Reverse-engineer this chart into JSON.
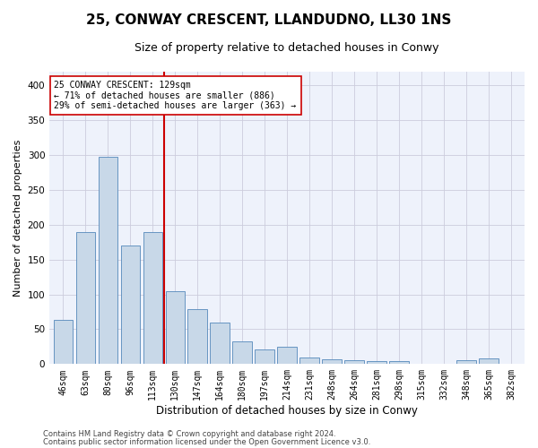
{
  "title_line1": "25, CONWAY CRESCENT, LLANDUDNO, LL30 1NS",
  "title_line2": "Size of property relative to detached houses in Conwy",
  "xlabel": "Distribution of detached houses by size in Conwy",
  "ylabel": "Number of detached properties",
  "categories": [
    "46sqm",
    "63sqm",
    "80sqm",
    "96sqm",
    "113sqm",
    "130sqm",
    "147sqm",
    "164sqm",
    "180sqm",
    "197sqm",
    "214sqm",
    "231sqm",
    "248sqm",
    "264sqm",
    "281sqm",
    "298sqm",
    "315sqm",
    "332sqm",
    "348sqm",
    "365sqm",
    "382sqm"
  ],
  "values": [
    63,
    190,
    297,
    170,
    190,
    104,
    79,
    60,
    32,
    21,
    25,
    9,
    7,
    5,
    4,
    4,
    1,
    0,
    5,
    8,
    0
  ],
  "bar_color": "#c8d8e8",
  "bar_edge_color": "#5588bb",
  "highlight_line_color": "#cc0000",
  "annotation_text": "25 CONWAY CRESCENT: 129sqm\n← 71% of detached houses are smaller (886)\n29% of semi-detached houses are larger (363) →",
  "annotation_box_color": "#ffffff",
  "annotation_box_edge_color": "#cc0000",
  "ylim": [
    0,
    420
  ],
  "yticks": [
    0,
    50,
    100,
    150,
    200,
    250,
    300,
    350,
    400
  ],
  "grid_color": "#ccccdd",
  "background_color": "#eef2fb",
  "footer_line1": "Contains HM Land Registry data © Crown copyright and database right 2024.",
  "footer_line2": "Contains public sector information licensed under the Open Government Licence v3.0.",
  "title1_fontsize": 11,
  "title2_fontsize": 9,
  "ylabel_fontsize": 8,
  "xlabel_fontsize": 8.5,
  "tick_fontsize": 7,
  "annotation_fontsize": 7,
  "footer_fontsize": 6,
  "bar_width": 0.85
}
